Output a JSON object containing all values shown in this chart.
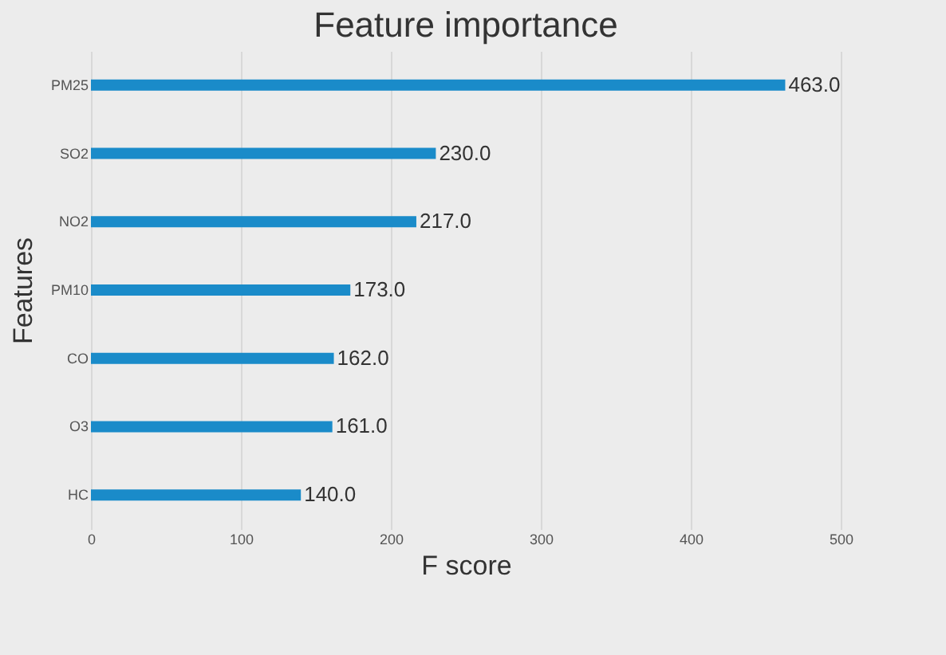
{
  "chart_data": {
    "type": "bar",
    "orientation": "horizontal",
    "title": "Feature importance",
    "xlabel": "F score",
    "ylabel": "Features",
    "categories": [
      "PM25",
      "SO2",
      "NO2",
      "PM10",
      "CO",
      "O3",
      "HC"
    ],
    "values": [
      463,
      230,
      217,
      173,
      162,
      161,
      140
    ],
    "value_labels": [
      "463.0",
      "230.0",
      "217.0",
      "173.0",
      "162.0",
      "161.0",
      "140.0"
    ],
    "color": "#1a8bc9",
    "xlim": [
      0,
      500
    ],
    "xticks": [
      0,
      100,
      200,
      300,
      400,
      500
    ],
    "grid": "x"
  }
}
